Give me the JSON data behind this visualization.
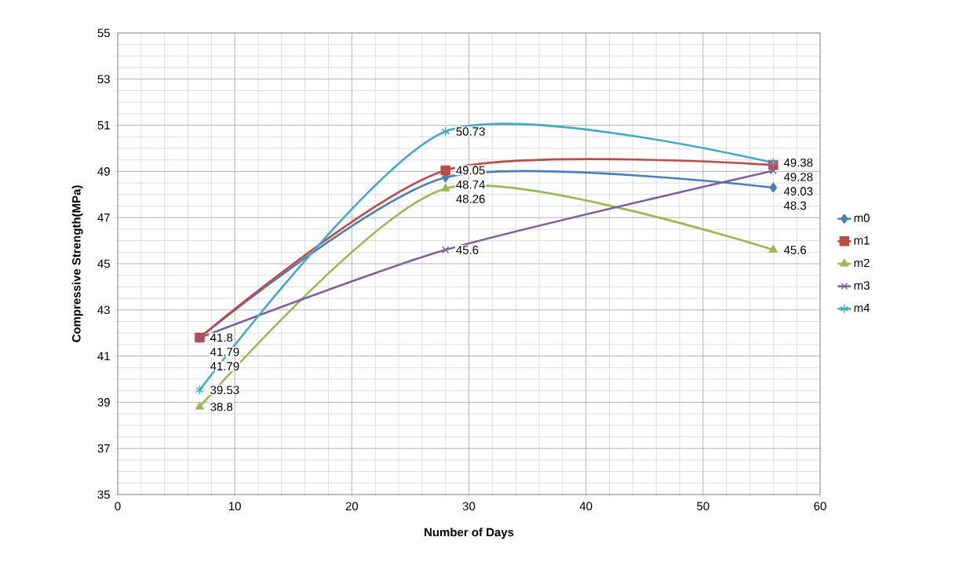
{
  "chart_data": {
    "type": "line",
    "xlabel": "Number of Days",
    "ylabel": "Compressive Strength(MPa)",
    "x": [
      7,
      28,
      56
    ],
    "series": [
      {
        "name": "m0",
        "color": "#4a7ebb",
        "marker": "diamond",
        "values": [
          41.79,
          48.74,
          48.3
        ]
      },
      {
        "name": "m1",
        "color": "#be4b48",
        "marker": "square",
        "values": [
          41.8,
          49.05,
          49.28
        ]
      },
      {
        "name": "m2",
        "color": "#98b954",
        "marker": "triangle",
        "values": [
          38.8,
          48.26,
          45.6
        ]
      },
      {
        "name": "m3",
        "color": "#7d60a0",
        "marker": "cross",
        "values": [
          41.79,
          45.6,
          49.03
        ]
      },
      {
        "name": "m4",
        "color": "#46aac5",
        "marker": "cross",
        "values": [
          39.53,
          50.73,
          49.38
        ]
      }
    ],
    "xlim": [
      0,
      60
    ],
    "xticks": [
      0,
      10,
      20,
      30,
      40,
      50,
      60
    ],
    "ylim": [
      35,
      55
    ],
    "yticks": [
      35,
      37,
      39,
      41,
      43,
      45,
      47,
      49,
      51,
      53,
      55
    ],
    "grid": true,
    "legend": "right",
    "data_labels": true
  }
}
